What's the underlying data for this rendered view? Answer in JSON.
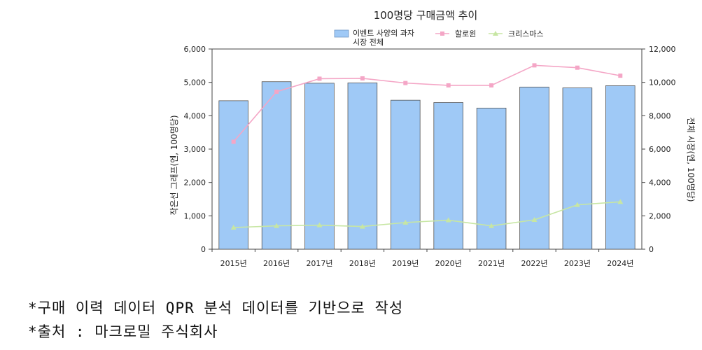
{
  "chart_data": {
    "type": "bar+line",
    "title": "100명당 구매금액 추이",
    "categories": [
      "2015년",
      "2016년",
      "2017년",
      "2018년",
      "2019년",
      "2020년",
      "2021년",
      "2022년",
      "2023년",
      "2024년"
    ],
    "y_left": {
      "label": "작은선 그래프(엔, 100명당)",
      "min": 0,
      "max": 6000,
      "ticks": [
        "0",
        "1,000",
        "2,000",
        "3,000",
        "4,000",
        "5,000",
        "6,000"
      ]
    },
    "y_right": {
      "label": "전체 시장(엔, 100명당)",
      "min": 0,
      "max": 12000,
      "ticks": [
        "0",
        "2,000",
        "4,000",
        "6,000",
        "8,000",
        "10,000",
        "12,000"
      ]
    },
    "series": [
      {
        "name": "이벤트 사양의 과자 시장 전체",
        "name_lines": [
          "이벤트 사양의 과자",
          "시장 전체"
        ],
        "type": "bar",
        "axis": "right",
        "color": "#9fc9f6",
        "values": [
          8900,
          10040,
          9950,
          9970,
          8930,
          8790,
          8460,
          9720,
          9670,
          9800
        ]
      },
      {
        "name": "할로윈",
        "type": "line",
        "axis": "left",
        "color": "#f4a6c6",
        "values": [
          3220,
          4720,
          5110,
          5120,
          4980,
          4910,
          4910,
          5510,
          5440,
          5200
        ]
      },
      {
        "name": "크리스마스",
        "type": "line",
        "axis": "left",
        "color": "#c7e6a3",
        "values": [
          650,
          700,
          720,
          680,
          800,
          870,
          700,
          880,
          1330,
          1420
        ]
      }
    ],
    "legend_position": "top",
    "grid": false
  },
  "notes": [
    "*구매 이력 데이터 QPR 분석 데이터를 기반으로 작성",
    "*출처 : 마크로밀 주식회사"
  ]
}
